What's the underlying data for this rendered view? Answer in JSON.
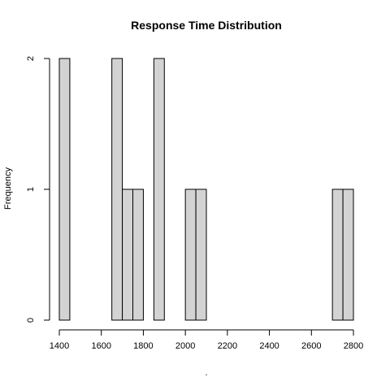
{
  "chart_data": {
    "type": "bar",
    "title": "Response Time Distribution",
    "xlabel": ".",
    "ylabel": "Frequency",
    "xlim": [
      1400,
      2800
    ],
    "ylim": [
      0,
      2
    ],
    "x_ticks": [
      1400,
      1600,
      1800,
      2000,
      2200,
      2400,
      2600,
      2800
    ],
    "y_ticks": [
      0,
      1,
      2
    ],
    "bin_width": 50,
    "bins": [
      {
        "start": 1400,
        "end": 1450,
        "count": 2
      },
      {
        "start": 1650,
        "end": 1700,
        "count": 2
      },
      {
        "start": 1700,
        "end": 1750,
        "count": 1
      },
      {
        "start": 1750,
        "end": 1800,
        "count": 1
      },
      {
        "start": 1850,
        "end": 1900,
        "count": 2
      },
      {
        "start": 2000,
        "end": 2050,
        "count": 1
      },
      {
        "start": 2050,
        "end": 2100,
        "count": 1
      },
      {
        "start": 2700,
        "end": 2750,
        "count": 1
      },
      {
        "start": 2750,
        "end": 2800,
        "count": 1
      }
    ],
    "bar_color": "#d3d3d3",
    "grid": false,
    "legend": "none"
  }
}
